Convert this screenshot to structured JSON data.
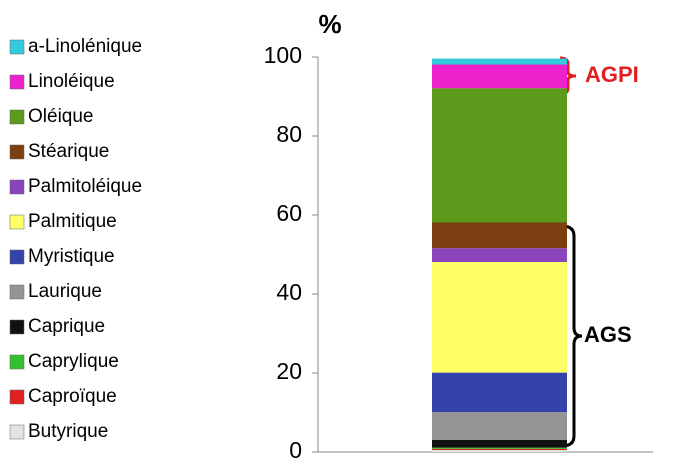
{
  "chart_data": {
    "type": "stacked_bar",
    "y_label": "%",
    "categories": [
      null
    ],
    "series": [
      {
        "name": "Butyrique",
        "color": "#e2e2e2",
        "values": [
          0.5
        ]
      },
      {
        "name": "Caproïque",
        "color": "#e02020",
        "values": [
          0.3
        ]
      },
      {
        "name": "Caprylique",
        "color": "#30c030",
        "values": [
          0.3
        ]
      },
      {
        "name": "Caprique",
        "color": "#111111",
        "values": [
          2
        ]
      },
      {
        "name": "Laurique",
        "color": "#959595",
        "values": [
          7
        ]
      },
      {
        "name": "Myristique",
        "color": "#3443aa",
        "values": [
          10
        ]
      },
      {
        "name": "Palmitique",
        "color": "#ffff66",
        "values": [
          28
        ]
      },
      {
        "name": "Palmitoléique",
        "color": "#8a45bd",
        "values": [
          3.5
        ]
      },
      {
        "name": "Stéarique",
        "color": "#7a3e10",
        "values": [
          6.5
        ]
      },
      {
        "name": "Oléique",
        "color": "#5c9a1c",
        "values": [
          34
        ]
      },
      {
        "name": "Linoléique",
        "color": "#ee22cc",
        "values": [
          6
        ]
      },
      {
        "name": "a-Linolénique",
        "color": "#33ccdd",
        "values": [
          1.5
        ]
      }
    ],
    "ylim": [
      0,
      100
    ],
    "yticks": [
      0,
      20,
      40,
      60,
      80,
      100
    ],
    "annotations": [
      "AGPI",
      "AGS"
    ]
  }
}
